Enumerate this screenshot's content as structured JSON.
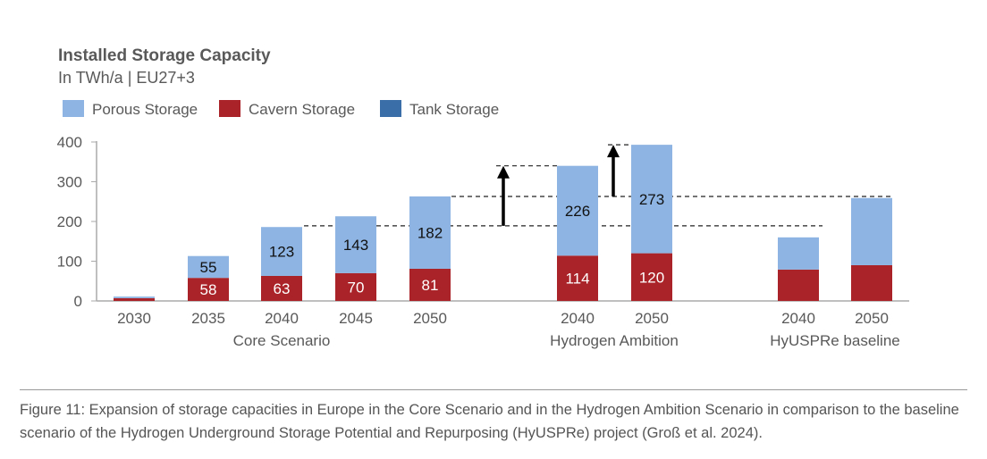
{
  "chart_data": {
    "type": "bar",
    "stacked": true,
    "title": "Installed Storage Capacity",
    "subtitle": "In TWh/a | EU27+3",
    "ylim": [
      0,
      400
    ],
    "yticks": [
      0,
      100,
      200,
      300,
      400
    ],
    "grid": false,
    "legend_placement": "top-left",
    "colors": {
      "porous": "#8db4e2",
      "cavern": "#aa2328",
      "tank": "#3a6ea8"
    },
    "legend": [
      "Porous Storage",
      "Cavern Storage",
      "Tank Storage"
    ],
    "groups": [
      {
        "label": "Core Scenario",
        "categories": [
          "2030",
          "2035",
          "2040",
          "2045",
          "2050"
        ]
      },
      {
        "label": "Hydrogen Ambition",
        "categories": [
          "2040",
          "2050"
        ]
      },
      {
        "label": "HyUSPRe baseline",
        "categories": [
          "2040",
          "2050"
        ]
      }
    ],
    "series": [
      {
        "name": "Cavern Storage",
        "values": [
          7,
          58,
          63,
          70,
          81,
          114,
          120,
          79,
          90
        ],
        "labels": [
          "",
          "58",
          "63",
          "70",
          "81",
          "114",
          "120",
          "",
          ""
        ]
      },
      {
        "name": "Porous Storage",
        "values": [
          4,
          55,
          123,
          143,
          182,
          226,
          273,
          81,
          169
        ],
        "labels": [
          "",
          "55",
          "123",
          "143",
          "182",
          "226",
          "273",
          "",
          ""
        ]
      },
      {
        "name": "Tank Storage",
        "values": [
          0,
          0,
          0,
          0,
          0,
          0,
          0,
          0,
          0
        ]
      }
    ]
  },
  "caption": "Figure 11: Expansion of storage capacities in Europe in the Core Scenario and in the Hydrogen Ambition Scenario in comparison to the baseline scenario of the Hydrogen Underground Storage Potential and Repurposing (HyUSPRe) project (Groß et al. 2024)."
}
